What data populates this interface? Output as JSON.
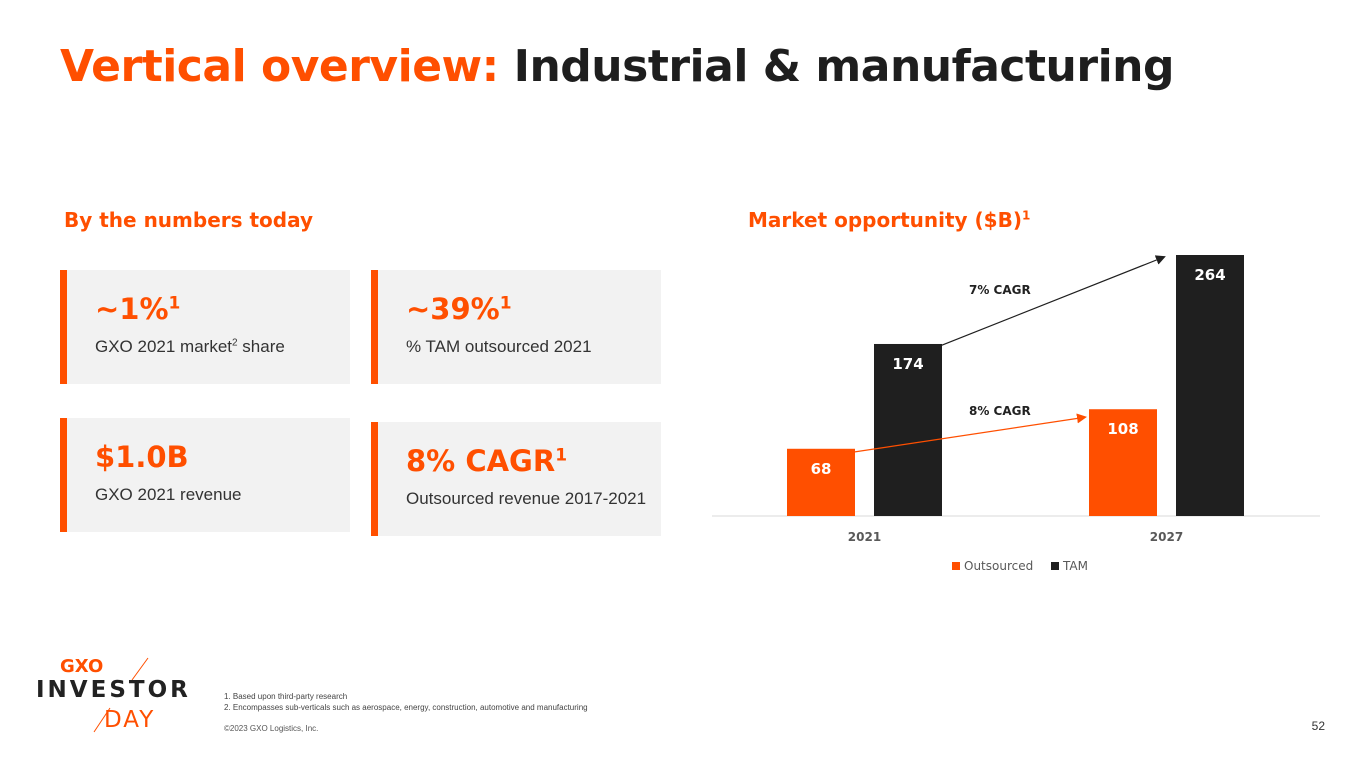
{
  "header": {
    "title_accent": "Vertical overview:",
    "title_rest": "Industrial & manufacturing"
  },
  "numbers": {
    "heading": "By the numbers today",
    "cards": [
      {
        "value": "~1%",
        "value_sup": "1",
        "label": "GXO 2021 market",
        "label_sup": "2",
        "label_tail": " share"
      },
      {
        "value": "~39%",
        "value_sup": "1",
        "label": "% TAM outsourced 2021"
      },
      {
        "value": "$1.0B",
        "label": "GXO 2021 revenue"
      },
      {
        "value": "8% CAGR",
        "value_sup": "1",
        "label": "Outsourced revenue 2017-2021"
      }
    ]
  },
  "market": {
    "heading": "Market opportunity ($B)",
    "heading_sup": "1"
  },
  "chart_data": {
    "type": "bar",
    "title": "Market opportunity ($B)",
    "categories": [
      "2021",
      "2027"
    ],
    "series": [
      {
        "name": "Outsourced",
        "values": [
          68,
          108
        ],
        "color": "#ff4f00"
      },
      {
        "name": "TAM",
        "values": [
          174,
          264
        ],
        "color": "#1f1f1f"
      }
    ],
    "ylim": [
      0,
      264
    ],
    "grid": false,
    "legend": "bottom-center",
    "annotations": [
      {
        "text": "7% CAGR",
        "series": "TAM",
        "from": "2021",
        "to": "2027"
      },
      {
        "text": "8% CAGR",
        "series": "Outsourced",
        "from": "2021",
        "to": "2027"
      }
    ]
  },
  "footer": {
    "footnote_1": "1. Based upon third-party research",
    "footnote_2": "2. Encompasses sub-verticals such as aerospace, energy, construction, automotive and manufacturing",
    "copyright": "©2023 GXO Logistics, Inc.",
    "page_number": "52"
  },
  "logo": {
    "brand": "GXO",
    "line1": "INVESTOR",
    "line2": "DAY"
  },
  "colors": {
    "accent": "#ff4f00",
    "dark": "#1f1f1f",
    "card_bg": "#f2f2f2"
  }
}
